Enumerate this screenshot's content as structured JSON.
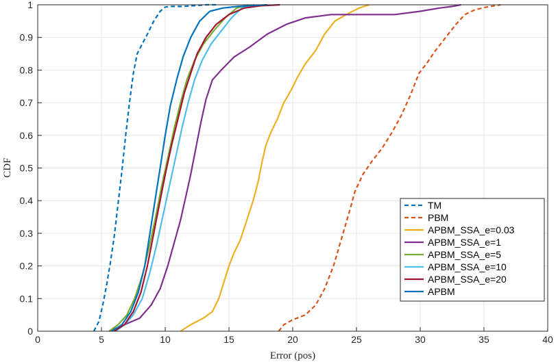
{
  "chart_data": {
    "type": "line",
    "title": "",
    "xlabel": "Error (pos)",
    "ylabel": "CDF",
    "xlim": [
      0,
      40
    ],
    "ylim": [
      0,
      1
    ],
    "grid": true,
    "legend_position": "bottom-right",
    "xticks": [
      0,
      5,
      10,
      15,
      20,
      25,
      30,
      35,
      40
    ],
    "yticks": [
      0,
      0.1,
      0.2,
      0.3,
      0.4,
      0.5,
      0.6,
      0.7,
      0.8,
      0.9,
      1
    ],
    "series": [
      {
        "name": "TM",
        "color": "#0072BD",
        "dash": "dashed",
        "x": [
          4.4,
          4.8,
          5.1,
          5.4,
          5.7,
          6.0,
          6.3,
          6.6,
          6.9,
          7.2,
          7.5,
          7.8,
          8.2,
          8.6,
          9.1,
          9.6,
          10.0,
          10.5,
          11.3,
          12.2,
          13.2,
          14.0
        ],
        "y": [
          0,
          0.03,
          0.08,
          0.14,
          0.21,
          0.29,
          0.39,
          0.49,
          0.6,
          0.7,
          0.79,
          0.85,
          0.88,
          0.91,
          0.95,
          0.98,
          0.993,
          0.995,
          0.995,
          0.997,
          1.0,
          1.0
        ]
      },
      {
        "name": "PBM",
        "color": "#D95319",
        "dash": "dashed",
        "x": [
          18.9,
          19.3,
          20.0,
          21.0,
          21.8,
          22.5,
          23.2,
          23.8,
          24.4,
          24.9,
          25.5,
          26.2,
          27.0,
          27.8,
          28.5,
          29.2,
          29.9,
          30.5,
          31.2,
          32.0,
          32.8,
          33.5,
          34.3,
          35.2,
          36.3
        ],
        "y": [
          0,
          0.02,
          0.035,
          0.05,
          0.08,
          0.13,
          0.2,
          0.28,
          0.36,
          0.43,
          0.48,
          0.52,
          0.56,
          0.61,
          0.66,
          0.72,
          0.79,
          0.82,
          0.86,
          0.9,
          0.94,
          0.97,
          0.985,
          0.993,
          1.0
        ]
      },
      {
        "name": "APBM_SSA_e=0.03",
        "color": "#EDB120",
        "dash": "solid",
        "x": [
          11.2,
          12.0,
          13.0,
          13.7,
          14.2,
          14.6,
          15.0,
          15.4,
          15.9,
          16.4,
          16.9,
          17.3,
          17.6,
          17.9,
          18.3,
          18.8,
          19.3,
          19.9,
          20.4,
          21.0,
          21.8,
          22.5,
          23.3,
          24.2,
          25.2,
          26.0
        ],
        "y": [
          0,
          0.02,
          0.04,
          0.06,
          0.1,
          0.15,
          0.2,
          0.24,
          0.28,
          0.34,
          0.4,
          0.46,
          0.52,
          0.57,
          0.61,
          0.65,
          0.7,
          0.74,
          0.78,
          0.82,
          0.86,
          0.91,
          0.95,
          0.97,
          0.99,
          1.0
        ]
      },
      {
        "name": "APBM_SSA_e=1",
        "color": "#7E2F8E",
        "dash": "solid",
        "x": [
          5.6,
          6.8,
          8.0,
          8.9,
          9.6,
          10.2,
          10.7,
          11.2,
          11.6,
          12.0,
          12.4,
          12.8,
          13.2,
          13.7,
          14.4,
          15.4,
          16.6,
          18.0,
          19.5,
          21.0,
          23.0,
          25.5,
          28.0,
          30.0,
          31.5,
          32.5,
          33.2
        ],
        "y": [
          0,
          0.02,
          0.04,
          0.08,
          0.13,
          0.2,
          0.27,
          0.34,
          0.41,
          0.48,
          0.56,
          0.64,
          0.71,
          0.77,
          0.8,
          0.84,
          0.87,
          0.91,
          0.94,
          0.96,
          0.97,
          0.97,
          0.97,
          0.98,
          0.99,
          0.995,
          1.0
        ]
      },
      {
        "name": "APBM_SSA_e=5",
        "color": "#77AC30",
        "dash": "solid",
        "x": [
          5.6,
          6.3,
          7.0,
          7.6,
          8.2,
          8.7,
          9.2,
          9.7,
          10.2,
          10.7,
          11.2,
          11.7,
          12.3,
          13.0,
          13.8,
          14.7,
          15.6,
          16.5
        ],
        "y": [
          0,
          0.02,
          0.05,
          0.1,
          0.17,
          0.25,
          0.34,
          0.44,
          0.53,
          0.62,
          0.7,
          0.77,
          0.83,
          0.88,
          0.92,
          0.96,
          0.99,
          1.0
        ]
      },
      {
        "name": "APBM_SSA_e=10",
        "color": "#4DBEEE",
        "dash": "solid",
        "x": [
          6.1,
          6.8,
          7.5,
          8.2,
          8.8,
          9.3,
          9.8,
          10.3,
          10.8,
          11.3,
          11.8,
          12.3,
          12.9,
          13.6,
          14.4,
          15.2,
          16.0,
          17.0
        ],
        "y": [
          0,
          0.02,
          0.05,
          0.1,
          0.18,
          0.26,
          0.35,
          0.44,
          0.53,
          0.62,
          0.7,
          0.77,
          0.83,
          0.88,
          0.92,
          0.96,
          0.99,
          1.0
        ]
      },
      {
        "name": "APBM_SSA_e=20",
        "color": "#A2142F",
        "dash": "solid",
        "x": [
          6.0,
          6.8,
          7.5,
          8.1,
          8.6,
          9.0,
          9.5,
          10.0,
          10.5,
          11.0,
          11.5,
          12.0,
          12.5,
          13.2,
          14.0,
          15.0,
          16.2,
          17.5,
          19.0
        ],
        "y": [
          0,
          0.02,
          0.06,
          0.12,
          0.2,
          0.28,
          0.38,
          0.48,
          0.57,
          0.65,
          0.73,
          0.79,
          0.85,
          0.9,
          0.94,
          0.97,
          0.99,
          0.997,
          1.0
        ]
      },
      {
        "name": "APBM",
        "color": "#0072BD",
        "dash": "solid",
        "x": [
          5.8,
          6.6,
          7.3,
          7.9,
          8.4,
          8.8,
          9.2,
          9.6,
          10.0,
          10.4,
          10.9,
          11.4,
          12.0,
          12.7,
          13.5,
          14.5,
          15.7,
          17.0,
          18.0
        ],
        "y": [
          0,
          0.02,
          0.06,
          0.12,
          0.2,
          0.3,
          0.4,
          0.5,
          0.6,
          0.69,
          0.77,
          0.84,
          0.9,
          0.95,
          0.98,
          0.99,
          0.995,
          0.998,
          1.0
        ]
      }
    ]
  }
}
